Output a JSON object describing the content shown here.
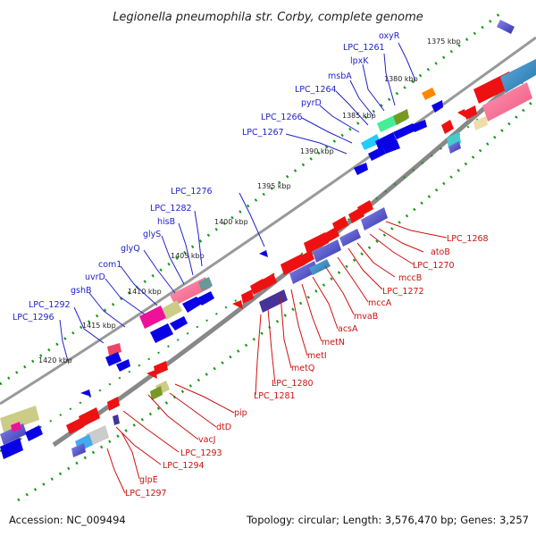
{
  "title": "Legionella pneumophila str. Corby, complete genome",
  "accession": "Accession: NC_009494",
  "summary": "Topology: circular; Length: 3,576,470 bp; Genes: 3,257",
  "kbp_ticks": [
    "1375 kbp",
    "1380 kbp",
    "1385 kbp",
    "1390 kbp",
    "1395 kbp",
    "1400 kbp",
    "1405 kbp",
    "1410 kbp",
    "1415 kbp",
    "1420 kbp"
  ],
  "forward_genes": [
    "oxyR",
    "LPC_1261",
    "lpxK",
    "msbA",
    "LPC_1264",
    "pyrD",
    "LPC_1266",
    "LPC_1267",
    "LPC_1276",
    "LPC_1282",
    "hisB",
    "glyS",
    "glyQ",
    "com1",
    "uvrD",
    "gshB",
    "LPC_1292",
    "LPC_1296"
  ],
  "reverse_genes": [
    "LPC_1268",
    "atoB",
    "LPC_1270",
    "mccB",
    "LPC_1272",
    "mccA",
    "mvaB",
    "acsA",
    "metN",
    "metI",
    "metQ",
    "LPC_1280",
    "LPC_1281",
    "pip",
    "dtD",
    "vacJ",
    "LPC_1293",
    "LPC_1294",
    "glpE",
    "LPC_1297"
  ],
  "colors": {
    "forward": "#0a00e6",
    "reverse": "#ee1111",
    "backbone": "#888888",
    "tick": "#119911"
  }
}
